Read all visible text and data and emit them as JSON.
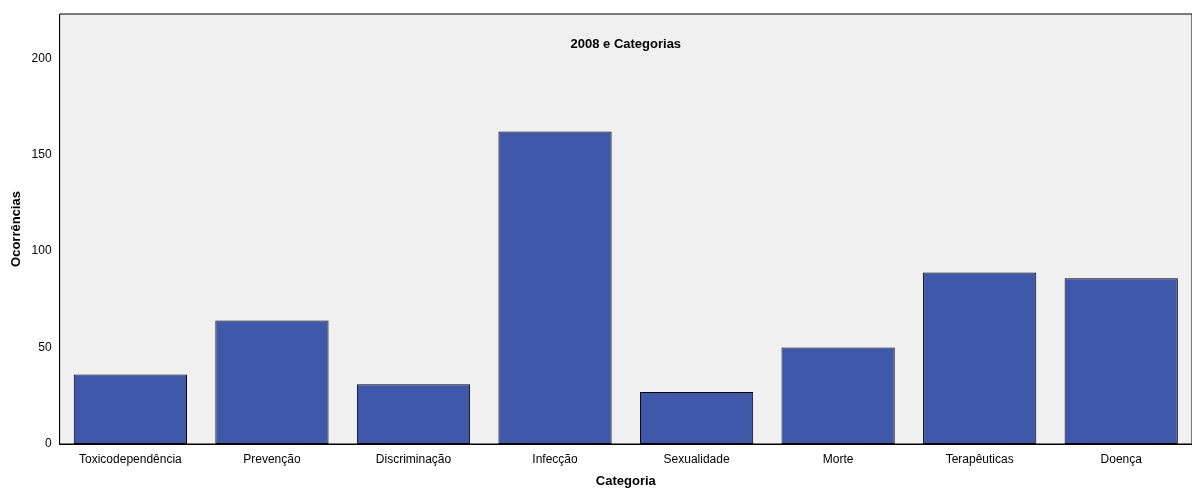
{
  "chart_data": {
    "type": "bar",
    "title": "2008 e Categorias",
    "xlabel": "Categoria",
    "ylabel": "Ocorrências",
    "categories": [
      "Toxicodependência",
      "Prevenção",
      "Discriminação",
      "Infecção",
      "Sexualidade",
      "Morte",
      "Terapêuticas",
      "Doença"
    ],
    "values": [
      36,
      64,
      31,
      162,
      27,
      50,
      89,
      86
    ],
    "color": "#3f58aa",
    "ylim": [
      0,
      223
    ],
    "yticks": [
      0,
      50,
      100,
      150,
      200
    ],
    "grid": false,
    "legend": false
  }
}
